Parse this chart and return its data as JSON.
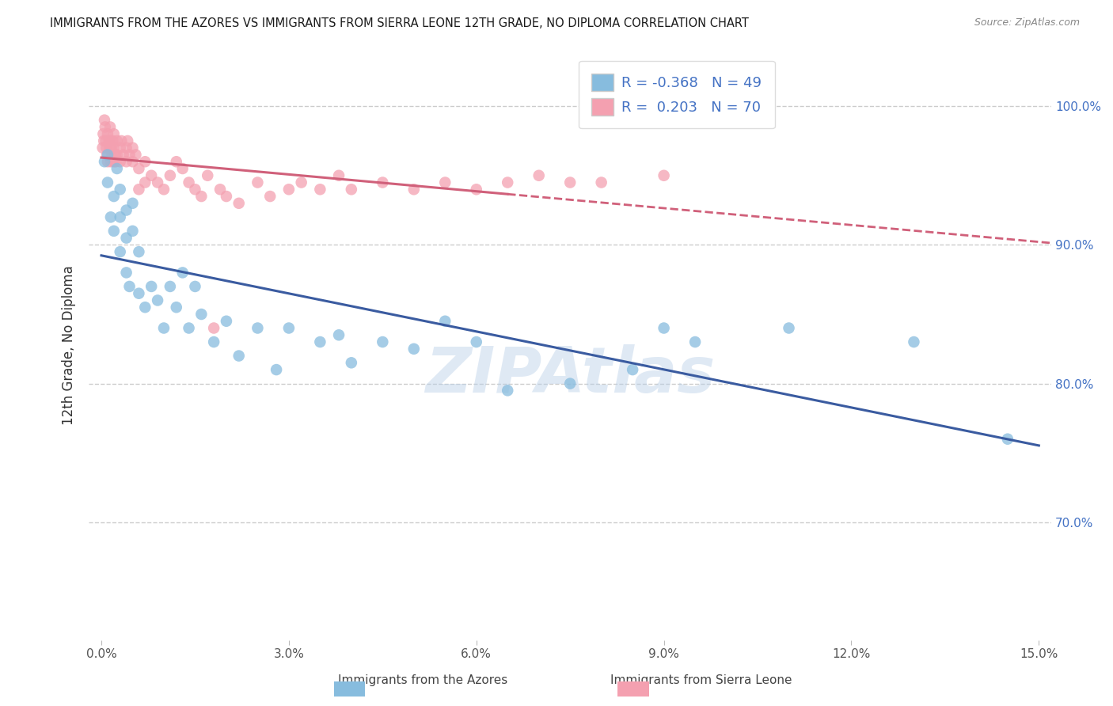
{
  "title": "IMMIGRANTS FROM THE AZORES VS IMMIGRANTS FROM SIERRA LEONE 12TH GRADE, NO DIPLOMA CORRELATION CHART",
  "source": "Source: ZipAtlas.com",
  "ylabel_label": "12th Grade, No Diploma",
  "legend_label1": "Immigrants from the Azores",
  "legend_label2": "Immigrants from Sierra Leone",
  "R1": -0.368,
  "N1": 49,
  "R2": 0.203,
  "N2": 70,
  "xlim": [
    -0.002,
    0.152
  ],
  "ylim": [
    0.615,
    1.04
  ],
  "yticks": [
    0.7,
    0.8,
    0.9,
    1.0
  ],
  "ytick_labels": [
    "70.0%",
    "80.0%",
    "90.0%",
    "100.0%"
  ],
  "xtick_vals": [
    0.0,
    0.03,
    0.06,
    0.09,
    0.12,
    0.15
  ],
  "xtick_labels": [
    "0.0%",
    "3.0%",
    "6.0%",
    "9.0%",
    "12.0%",
    "15.0%"
  ],
  "color_azores": "#87BCDE",
  "color_sierra": "#F4A0B0",
  "color_azores_line": "#3A5BA0",
  "color_sierra_line": "#D0607A",
  "watermark": "ZIPAtlas",
  "azores_x": [
    0.0005,
    0.001,
    0.001,
    0.0015,
    0.002,
    0.002,
    0.0025,
    0.003,
    0.003,
    0.003,
    0.004,
    0.004,
    0.004,
    0.0045,
    0.005,
    0.005,
    0.006,
    0.006,
    0.007,
    0.008,
    0.009,
    0.01,
    0.011,
    0.012,
    0.013,
    0.014,
    0.015,
    0.016,
    0.018,
    0.02,
    0.022,
    0.025,
    0.028,
    0.03,
    0.035,
    0.038,
    0.04,
    0.045,
    0.05,
    0.055,
    0.06,
    0.065,
    0.075,
    0.085,
    0.09,
    0.095,
    0.11,
    0.13,
    0.145
  ],
  "azores_y": [
    0.96,
    0.945,
    0.965,
    0.92,
    0.935,
    0.91,
    0.955,
    0.92,
    0.94,
    0.895,
    0.925,
    0.905,
    0.88,
    0.87,
    0.91,
    0.93,
    0.895,
    0.865,
    0.855,
    0.87,
    0.86,
    0.84,
    0.87,
    0.855,
    0.88,
    0.84,
    0.87,
    0.85,
    0.83,
    0.845,
    0.82,
    0.84,
    0.81,
    0.84,
    0.83,
    0.835,
    0.815,
    0.83,
    0.825,
    0.845,
    0.83,
    0.795,
    0.8,
    0.81,
    0.84,
    0.83,
    0.84,
    0.83,
    0.76
  ],
  "sierra_x": [
    0.0002,
    0.0003,
    0.0004,
    0.0005,
    0.0006,
    0.0007,
    0.0008,
    0.0009,
    0.001,
    0.001,
    0.0012,
    0.0013,
    0.0014,
    0.0015,
    0.0015,
    0.0016,
    0.0017,
    0.0018,
    0.002,
    0.002,
    0.002,
    0.0022,
    0.0023,
    0.0025,
    0.0025,
    0.003,
    0.003,
    0.0032,
    0.0035,
    0.004,
    0.004,
    0.0042,
    0.0045,
    0.005,
    0.005,
    0.0055,
    0.006,
    0.006,
    0.007,
    0.007,
    0.008,
    0.009,
    0.01,
    0.011,
    0.012,
    0.013,
    0.014,
    0.015,
    0.016,
    0.017,
    0.018,
    0.019,
    0.02,
    0.022,
    0.025,
    0.027,
    0.03,
    0.032,
    0.035,
    0.038,
    0.04,
    0.045,
    0.05,
    0.055,
    0.06,
    0.065,
    0.07,
    0.075,
    0.08,
    0.09
  ],
  "sierra_y": [
    0.97,
    0.98,
    0.975,
    0.99,
    0.985,
    0.975,
    0.97,
    0.965,
    0.98,
    0.96,
    0.975,
    0.97,
    0.985,
    0.96,
    0.975,
    0.97,
    0.965,
    0.975,
    0.96,
    0.97,
    0.98,
    0.965,
    0.96,
    0.975,
    0.965,
    0.97,
    0.96,
    0.975,
    0.965,
    0.96,
    0.97,
    0.975,
    0.965,
    0.96,
    0.97,
    0.965,
    0.955,
    0.94,
    0.96,
    0.945,
    0.95,
    0.945,
    0.94,
    0.95,
    0.96,
    0.955,
    0.945,
    0.94,
    0.935,
    0.95,
    0.84,
    0.94,
    0.935,
    0.93,
    0.945,
    0.935,
    0.94,
    0.945,
    0.94,
    0.95,
    0.94,
    0.945,
    0.94,
    0.945,
    0.94,
    0.945,
    0.95,
    0.945,
    0.945,
    0.95
  ]
}
